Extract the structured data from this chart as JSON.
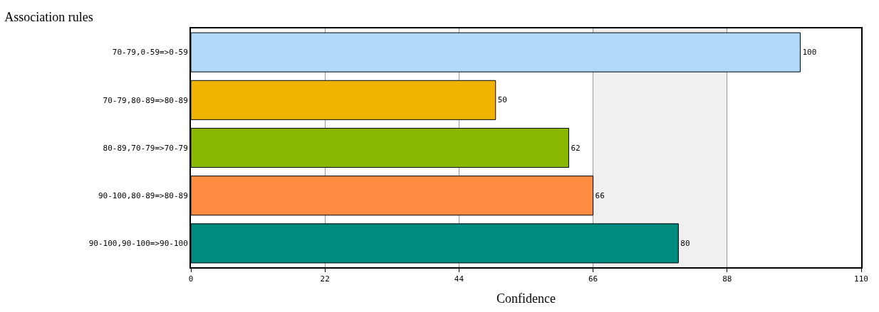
{
  "chart_data": {
    "type": "bar",
    "orientation": "horizontal",
    "title": "Association rules",
    "xlabel": "Confidence",
    "categories": [
      "70-79,0-59=>0-59",
      "70-79,80-89=>80-89",
      "80-89,70-79=>70-79",
      "90-100,80-89=>80-89",
      "90-100,90-100=>90-100"
    ],
    "values": [
      100,
      50,
      62,
      66,
      80
    ],
    "colors": [
      "#b0d8f8",
      "#f0b400",
      "#8ab800",
      "#ff8c40",
      "#008b80"
    ],
    "xlim": [
      0,
      110
    ],
    "xticks": [
      0,
      22,
      44,
      66,
      88,
      110
    ],
    "bands": [
      {
        "axis": "x",
        "from": 66,
        "to": 88,
        "color": "#f0f0f0"
      }
    ],
    "grid": "x",
    "data_labels": true
  }
}
